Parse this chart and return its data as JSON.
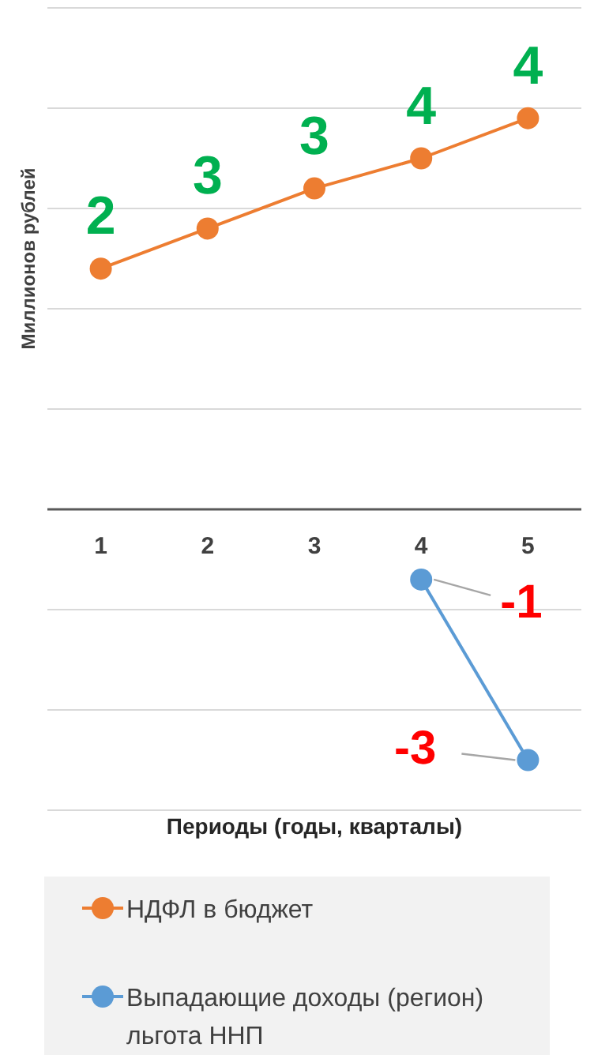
{
  "chart_data": {
    "type": "line",
    "xlabel": "Периоды (годы, кварталы)",
    "ylabel": "Миллионов рублей",
    "categories": [
      "1",
      "2",
      "3",
      "4",
      "5"
    ],
    "series": [
      {
        "name": "НДФЛ в бюджет",
        "color": "#ed7d31",
        "values": [
          2.4,
          2.8,
          3.2,
          3.5,
          3.9
        ],
        "value_labels": [
          "2",
          "3",
          "3",
          "4",
          "4"
        ]
      },
      {
        "name": "Выпадающие доходы (регион) льгота ННП",
        "color": "#5b9bd5",
        "values": [
          null,
          null,
          null,
          -0.7,
          -2.5
        ],
        "value_labels": [
          null,
          null,
          null,
          "-1",
          "-3"
        ]
      }
    ],
    "ylim": [
      -3,
      5
    ],
    "yticks": [
      {
        "value": -3,
        "label": null
      },
      {
        "value": -2,
        "label": null
      },
      {
        "value": -1,
        "label": null
      },
      {
        "value": 0,
        "label": null
      },
      {
        "value": 1,
        "label": null
      },
      {
        "value": 2,
        "label": null
      },
      {
        "value": 3,
        "label": null
      },
      {
        "value": 4,
        "label": null
      },
      {
        "value": 5,
        "label": null
      }
    ],
    "grid": "y",
    "tick_labels": "x",
    "marker": "circle",
    "line_style": "solid",
    "legend": "bottom"
  }
}
